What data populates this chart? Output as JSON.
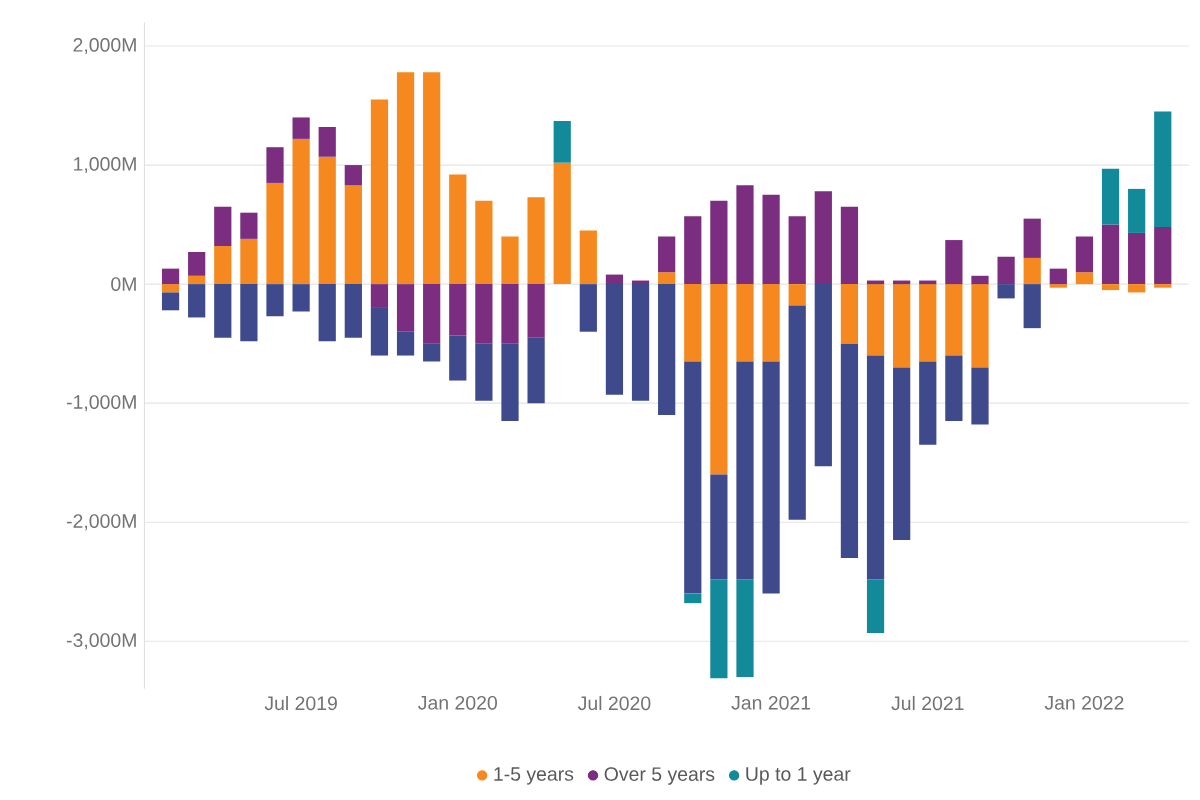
{
  "chart_data": {
    "type": "bar",
    "stacked": true,
    "x": [
      "2019-02",
      "2019-03",
      "2019-04",
      "2019-05",
      "2019-06",
      "2019-07",
      "2019-08",
      "2019-09",
      "2019-10",
      "2019-11",
      "2019-12",
      "2020-01",
      "2020-02",
      "2020-03",
      "2020-04",
      "2020-05",
      "2020-06",
      "2020-07",
      "2020-08",
      "2020-09",
      "2020-10",
      "2020-11",
      "2020-12",
      "2021-01",
      "2021-02",
      "2021-03",
      "2021-04",
      "2021-05",
      "2021-06",
      "2021-07",
      "2021-08",
      "2021-09",
      "2021-10",
      "2021-11",
      "2021-12",
      "2022-01",
      "2022-02",
      "2022-03",
      "2022-04"
    ],
    "series": [
      {
        "name": "1-5 years",
        "color": "#f5891f",
        "values": [
          -70,
          70,
          320,
          380,
          850,
          1220,
          1070,
          830,
          1550,
          1780,
          1780,
          920,
          700,
          400,
          730,
          1020,
          450,
          null,
          null,
          100,
          -650,
          -1600,
          -650,
          -650,
          -180,
          null,
          -500,
          -600,
          -700,
          -650,
          -600,
          -700,
          null,
          220,
          -30,
          100,
          -50,
          -70,
          -30
        ]
      },
      {
        "name": "Over 5 years",
        "color": "#7b2d7f",
        "values": [
          130,
          200,
          330,
          220,
          300,
          180,
          250,
          170,
          -200,
          -400,
          -500,
          -430,
          -500,
          -500,
          -450,
          null,
          null,
          80,
          30,
          300,
          570,
          700,
          830,
          750,
          570,
          780,
          650,
          30,
          30,
          30,
          370,
          70,
          230,
          330,
          130,
          300,
          500,
          430,
          480
        ]
      },
      {
        "color": "#3e4a8c",
        "values": [
          -150,
          -280,
          -450,
          -480,
          -270,
          -230,
          -480,
          -450,
          -400,
          -200,
          -150,
          -380,
          -480,
          -650,
          -550,
          null,
          -400,
          -930,
          -980,
          -1100,
          -1950,
          -880,
          -1830,
          -1950,
          -1800,
          -1530,
          -1800,
          -1880,
          -1450,
          -700,
          -550,
          -480,
          -120,
          -370,
          null,
          null,
          null,
          null,
          null
        ]
      },
      {
        "name": "Up to 1 year",
        "color": "#138a99",
        "values": [
          null,
          null,
          null,
          null,
          null,
          null,
          null,
          null,
          null,
          null,
          null,
          null,
          null,
          null,
          null,
          350,
          null,
          null,
          null,
          null,
          -80,
          -830,
          -820,
          null,
          null,
          null,
          null,
          -450,
          null,
          null,
          null,
          null,
          null,
          null,
          null,
          null,
          470,
          370,
          970
        ]
      }
    ],
    "xlim": [
      "2019-01",
      "2022-05"
    ],
    "xticks": [
      {
        "value": "2019-07",
        "label": "Jul 2019"
      },
      {
        "value": "2020-01",
        "label": "Jan 2020"
      },
      {
        "value": "2020-07",
        "label": "Jul 2020"
      },
      {
        "value": "2021-01",
        "label": "Jan 2021"
      },
      {
        "value": "2021-07",
        "label": "Jul 2021"
      },
      {
        "value": "2022-01",
        "label": "Jan 2022"
      }
    ],
    "ylim": [
      -3400,
      2200
    ],
    "yticks": [
      {
        "value": 2000,
        "label": "2,000M"
      },
      {
        "value": 1000,
        "label": "1,000M"
      },
      {
        "value": 0,
        "label": "0M"
      },
      {
        "value": -1000,
        "label": "-1,000M"
      },
      {
        "value": -2000,
        "label": "-2,000M"
      },
      {
        "value": -3000,
        "label": "-3,000M"
      }
    ],
    "grid": "y",
    "legend": "bottom"
  }
}
